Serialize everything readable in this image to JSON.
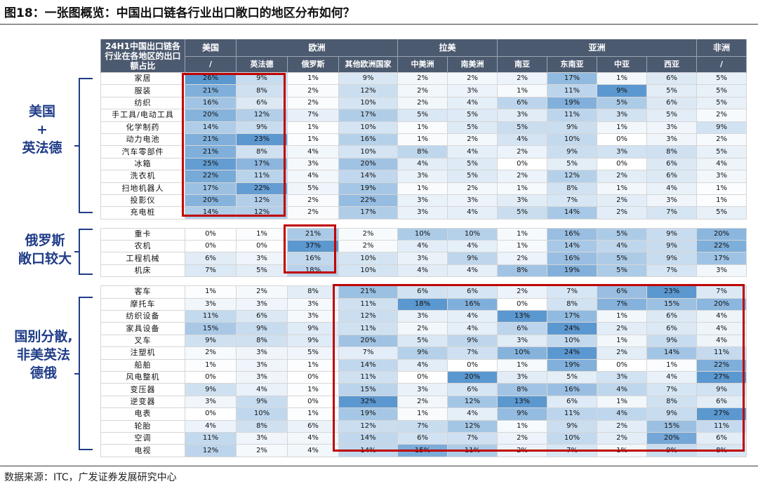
{
  "figure": {
    "title": "图18：一张图概览：中国出口链各行业出口敞口的地区分布如何？",
    "source": "数据来源：ITC，广发证券发展研究中心"
  },
  "colors": {
    "header_bg": "#4c5a70",
    "heat_low": "#ffffff",
    "heat_high": "#3f86c8",
    "highlight_box": "#c00000",
    "group_label": "#1f3c88"
  },
  "groups": [
    {
      "label_lines": [
        "美国",
        "+",
        "英法德"
      ]
    },
    {
      "label_lines": [
        "俄罗斯",
        "敞口较大"
      ]
    },
    {
      "label_lines": [
        "国别分散,",
        "非美英法",
        "德俄"
      ]
    }
  ],
  "chart_data": {
    "type": "table",
    "corner_header": "24H1中国出口链各行业在各地区的出口额占比",
    "regions": [
      {
        "name": "美国",
        "span": 1
      },
      {
        "name": "欧洲",
        "span": 3
      },
      {
        "name": "拉美",
        "span": 2
      },
      {
        "name": "亚洲",
        "span": 4
      },
      {
        "name": "非洲",
        "span": 1
      }
    ],
    "columns": [
      "/",
      "英法德",
      "俄罗斯",
      "其他欧洲国家",
      "中美洲",
      "南美洲",
      "南亚",
      "东南亚",
      "中亚",
      "西亚",
      "/"
    ],
    "row_groups": [
      {
        "rows": [
          {
            "label": "家居",
            "values": [
              26,
              9,
              1,
              9,
              2,
              2,
              2,
              17,
              1,
              6,
              5
            ]
          },
          {
            "label": "服装",
            "values": [
              21,
              8,
              2,
              12,
              2,
              3,
              1,
              11,
              9,
              5,
              5
            ]
          },
          {
            "label": "纺织",
            "values": [
              16,
              6,
              2,
              10,
              2,
              4,
              6,
              19,
              5,
              6,
              5
            ]
          },
          {
            "label": "手工具/电动工具",
            "values": [
              20,
              12,
              7,
              17,
              5,
              5,
              3,
              11,
              3,
              5,
              2
            ]
          },
          {
            "label": "化学制药",
            "values": [
              14,
              9,
              1,
              10,
              1,
              5,
              5,
              9,
              1,
              3,
              9
            ]
          },
          {
            "label": "动力电池",
            "values": [
              21,
              23,
              1,
              16,
              1,
              2,
              4,
              10,
              0,
              3,
              2
            ]
          },
          {
            "label": "汽车零部件",
            "values": [
              21,
              8,
              4,
              10,
              8,
              4,
              2,
              9,
              3,
              8,
              5
            ]
          },
          {
            "label": "冰箱",
            "values": [
              25,
              17,
              3,
              20,
              4,
              5,
              0,
              5,
              0,
              6,
              4
            ]
          },
          {
            "label": "洗衣机",
            "values": [
              22,
              11,
              4,
              14,
              3,
              5,
              2,
              12,
              2,
              6,
              3
            ]
          },
          {
            "label": "扫地机器人",
            "values": [
              17,
              22,
              5,
              19,
              1,
              2,
              1,
              8,
              1,
              4,
              1
            ]
          },
          {
            "label": "投影仪",
            "values": [
              20,
              12,
              2,
              22,
              3,
              3,
              3,
              7,
              2,
              3,
              1
            ]
          },
          {
            "label": "充电桩",
            "values": [
              14,
              12,
              2,
              17,
              3,
              4,
              5,
              14,
              2,
              7,
              5
            ]
          }
        ]
      },
      {
        "rows": [
          {
            "label": "重卡",
            "values": [
              0,
              1,
              21,
              2,
              10,
              10,
              1,
              16,
              5,
              9,
              20
            ]
          },
          {
            "label": "农机",
            "values": [
              0,
              0,
              37,
              2,
              4,
              4,
              1,
              14,
              4,
              9,
              22
            ]
          },
          {
            "label": "工程机械",
            "values": [
              6,
              3,
              16,
              10,
              3,
              9,
              2,
              16,
              5,
              9,
              17
            ]
          },
          {
            "label": "机床",
            "values": [
              7,
              5,
              18,
              10,
              4,
              4,
              8,
              19,
              5,
              7,
              3
            ]
          }
        ]
      },
      {
        "rows": [
          {
            "label": "客车",
            "values": [
              1,
              2,
              8,
              21,
              6,
              6,
              2,
              7,
              6,
              23,
              7
            ]
          },
          {
            "label": "摩托车",
            "values": [
              3,
              3,
              3,
              11,
              18,
              16,
              0,
              8,
              7,
              15,
              20
            ]
          },
          {
            "label": "纺织设备",
            "values": [
              11,
              6,
              3,
              12,
              3,
              4,
              13,
              17,
              1,
              6,
              4
            ]
          },
          {
            "label": "家具设备",
            "values": [
              15,
              9,
              9,
              11,
              2,
              4,
              6,
              24,
              2,
              6,
              4
            ]
          },
          {
            "label": "叉车",
            "values": [
              9,
              8,
              9,
              20,
              5,
              9,
              3,
              10,
              1,
              9,
              4
            ]
          },
          {
            "label": "注塑机",
            "values": [
              2,
              3,
              5,
              7,
              9,
              7,
              10,
              24,
              2,
              14,
              11
            ]
          },
          {
            "label": "船舶",
            "values": [
              1,
              3,
              1,
              14,
              4,
              0,
              1,
              19,
              0,
              1,
              22
            ]
          },
          {
            "label": "风电整机",
            "values": [
              0,
              3,
              0,
              11,
              0,
              20,
              3,
              5,
              3,
              4,
              27
            ]
          },
          {
            "label": "变压器",
            "values": [
              9,
              4,
              1,
              15,
              3,
              6,
              8,
              16,
              4,
              7,
              9
            ]
          },
          {
            "label": "逆变器",
            "values": [
              3,
              9,
              0,
              32,
              2,
              12,
              13,
              6,
              1,
              8,
              6
            ]
          },
          {
            "label": "电表",
            "values": [
              0,
              10,
              1,
              19,
              1,
              4,
              9,
              11,
              4,
              9,
              27
            ]
          },
          {
            "label": "轮胎",
            "values": [
              4,
              8,
              6,
              12,
              7,
              12,
              1,
              9,
              2,
              15,
              11
            ]
          },
          {
            "label": "空调",
            "values": [
              11,
              3,
              4,
              14,
              6,
              7,
              2,
              10,
              2,
              20,
              6
            ]
          },
          {
            "label": "电视",
            "values": [
              12,
              2,
              4,
              14,
              15,
              11,
              2,
              7,
              1,
              9,
              8
            ]
          }
        ]
      }
    ],
    "value_unit": "%",
    "heat_scale": "per-column"
  }
}
